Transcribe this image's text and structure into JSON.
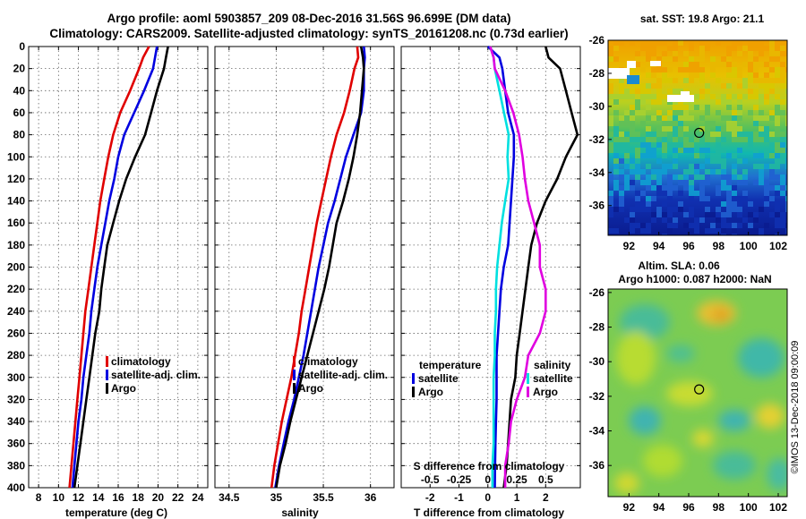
{
  "title_line1": "Argo profile: aoml 5903857_209 08-Dec-2016 31.56S 96.699E (DM data)",
  "title_line2": "Climatology: CARS2009. Satellite-adjusted climatology: synTS_20161208.nc (0.73d earlier)",
  "colors": {
    "climatology": "#e00000",
    "satellite": "#0000e0",
    "argo": "#000000",
    "sat_diff_T": "#00e0e0",
    "sat_diff_S": "#e000e0"
  },
  "chart_data": [
    {
      "type": "line",
      "name": "temperature",
      "xlabel": "temperature (deg C)",
      "ylabel": "",
      "xlim": [
        7,
        25
      ],
      "ylim": [
        400,
        0
      ],
      "xticks": [
        8,
        10,
        12,
        14,
        16,
        18,
        20,
        22,
        24
      ],
      "yticks": [
        0,
        20,
        40,
        60,
        80,
        100,
        120,
        140,
        160,
        180,
        200,
        220,
        240,
        260,
        280,
        300,
        320,
        340,
        360,
        380,
        400
      ],
      "depth": [
        0,
        10,
        20,
        40,
        60,
        80,
        100,
        120,
        140,
        160,
        180,
        200,
        220,
        240,
        260,
        280,
        300,
        320,
        340,
        360,
        380,
        400
      ],
      "series": [
        {
          "name": "climatology",
          "values": [
            19.1,
            18.5,
            18.1,
            17.2,
            16.2,
            15.5,
            15.0,
            14.6,
            14.2,
            13.9,
            13.6,
            13.3,
            13.0,
            12.7,
            12.5,
            12.3,
            12.1,
            11.9,
            11.7,
            11.5,
            11.3,
            11.1
          ]
        },
        {
          "name": "satellite-adj. clim.",
          "values": [
            19.9,
            19.7,
            19.5,
            18.6,
            17.6,
            16.6,
            16.0,
            15.6,
            15.1,
            14.7,
            14.3,
            13.9,
            13.6,
            13.3,
            13.1,
            12.8,
            12.5,
            12.3,
            12.0,
            11.8,
            11.6,
            11.4
          ]
        },
        {
          "name": "Argo",
          "values": [
            21.0,
            20.8,
            20.6,
            19.9,
            19.3,
            18.7,
            17.7,
            16.8,
            16.1,
            15.5,
            14.9,
            14.6,
            14.3,
            14.1,
            13.7,
            13.4,
            13.1,
            12.8,
            12.5,
            12.2,
            11.9,
            11.6
          ]
        }
      ],
      "legend": [
        "climatology",
        "satellite-adj. clim.",
        "Argo"
      ]
    },
    {
      "type": "line",
      "name": "salinity",
      "xlabel": "salinity",
      "xlim": [
        34.35,
        36.25
      ],
      "ylim": [
        400,
        0
      ],
      "xticks": [
        34.5,
        35,
        35.5,
        36
      ],
      "xticklabels": [
        "34.5",
        "35",
        "35.5",
        "36"
      ],
      "depth": [
        0,
        10,
        20,
        40,
        60,
        80,
        100,
        120,
        140,
        160,
        180,
        200,
        220,
        240,
        260,
        280,
        300,
        320,
        340,
        360,
        380,
        400
      ],
      "series": [
        {
          "name": "climatology",
          "values": [
            35.86,
            35.87,
            35.83,
            35.78,
            35.72,
            35.64,
            35.58,
            35.53,
            35.48,
            35.43,
            35.39,
            35.35,
            35.31,
            35.27,
            35.24,
            35.2,
            35.16,
            35.11,
            35.06,
            35.02,
            34.98,
            34.95
          ]
        },
        {
          "name": "satellite-adj. clim.",
          "values": [
            35.93,
            35.94,
            35.93,
            35.93,
            35.9,
            35.82,
            35.74,
            35.68,
            35.62,
            35.55,
            35.5,
            35.45,
            35.41,
            35.37,
            35.33,
            35.29,
            35.24,
            35.19,
            35.13,
            35.08,
            35.03,
            34.99
          ]
        },
        {
          "name": "Argo",
          "values": [
            35.9,
            35.92,
            35.93,
            35.91,
            35.89,
            35.86,
            35.82,
            35.77,
            35.71,
            35.64,
            35.6,
            35.56,
            35.51,
            35.45,
            35.39,
            35.33,
            35.27,
            35.21,
            35.15,
            35.1,
            35.04,
            35.0
          ]
        }
      ],
      "legend": [
        "climatology",
        "satellite-adj. clim.",
        "Argo"
      ]
    },
    {
      "type": "line",
      "name": "difference",
      "xlabel": "T difference from climatology",
      "xlabel_top": "S difference from climatology",
      "xlim": [
        -3,
        3.2
      ],
      "ylim": [
        400,
        0
      ],
      "xticks": [
        -2,
        -1,
        0,
        1,
        2
      ],
      "xticks_top": [
        -0.5,
        -0.25,
        0,
        0.25,
        0.5
      ],
      "xticklabels_top": [
        "-0.5",
        "-0.25",
        "0",
        "0.25",
        "0.5"
      ],
      "depth": [
        0,
        10,
        20,
        40,
        60,
        80,
        100,
        120,
        140,
        160,
        180,
        200,
        220,
        240,
        260,
        280,
        300,
        320,
        340,
        360,
        380,
        400
      ],
      "series": [
        {
          "name": "temperature satellite",
          "group": "temperature",
          "values": [
            0.0,
            0.4,
            0.5,
            0.6,
            0.7,
            0.9,
            0.9,
            0.85,
            0.8,
            0.75,
            0.7,
            0.55,
            0.45,
            0.4,
            0.35,
            0.3,
            0.3,
            0.3,
            0.28,
            0.26,
            0.25,
            0.24
          ]
        },
        {
          "name": "temperature Argo",
          "group": "temperature",
          "values": [
            2.0,
            2.1,
            2.5,
            2.7,
            2.9,
            3.1,
            2.7,
            2.4,
            2.0,
            1.7,
            1.5,
            1.4,
            1.3,
            1.2,
            1.1,
            1.0,
            0.95,
            0.8,
            0.75,
            0.7,
            0.65,
            0.55
          ]
        },
        {
          "name": "salinity satellite",
          "group": "salinity",
          "values": [
            0.02,
            0.05,
            0.06,
            0.1,
            0.14,
            0.18,
            0.17,
            0.18,
            0.15,
            0.12,
            0.1,
            0.08,
            0.07,
            0.07,
            0.06,
            0.06,
            0.05,
            0.05,
            0.05,
            0.05,
            0.04,
            0.04
          ]
        },
        {
          "name": "salinity Argo",
          "group": "salinity",
          "values": [
            0.02,
            0.05,
            0.06,
            0.15,
            0.22,
            0.27,
            0.3,
            0.32,
            0.35,
            0.4,
            0.45,
            0.45,
            0.5,
            0.5,
            0.45,
            0.35,
            0.32,
            0.25,
            0.2,
            0.18,
            0.15,
            0.15
          ]
        }
      ],
      "legend_temperature": {
        "heading": "temperature",
        "items": [
          "satellite",
          "Argo"
        ]
      },
      "legend_salinity": {
        "heading": "salinity",
        "items": [
          "satellite",
          "Argo"
        ]
      }
    },
    {
      "type": "heatmap",
      "name": "sst_map",
      "title": "sat. SST: 19.8 Argo: 21.1",
      "xticks": [
        92,
        94,
        96,
        98,
        100,
        102
      ],
      "yticks": [
        -26,
        -28,
        -30,
        -32,
        -34,
        -36
      ],
      "xlim": [
        90.6,
        102.6
      ],
      "ylim": [
        -26,
        -37.8
      ],
      "marker": {
        "lon": 96.7,
        "lat": -31.6
      }
    },
    {
      "type": "heatmap",
      "name": "sla_map",
      "title": "Altim. SLA: 0.06",
      "subtitle": "Argo h1000: 0.087 h2000: NaN",
      "xticks": [
        92,
        94,
        96,
        98,
        100,
        102
      ],
      "yticks": [
        -26,
        -28,
        -30,
        -32,
        -34,
        -36
      ],
      "xlim": [
        90.6,
        102.6
      ],
      "ylim": [
        -25.8,
        -37.8
      ],
      "marker": {
        "lon": 96.7,
        "lat": -31.6
      }
    }
  ],
  "footer": "©IMOS 13-Dec-2018 09:00:09"
}
